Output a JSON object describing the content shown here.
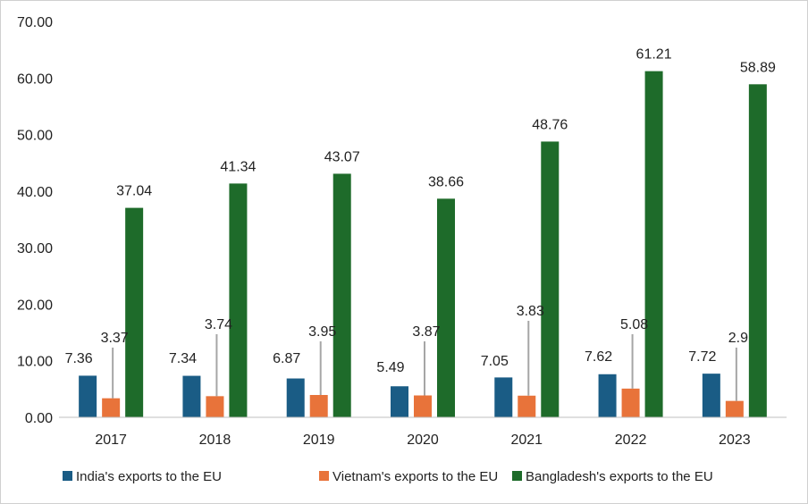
{
  "chart_data": {
    "type": "bar",
    "categories": [
      "2017",
      "2018",
      "2019",
      "2020",
      "2021",
      "2022",
      "2023"
    ],
    "series": [
      {
        "name": "India's exports to the EU",
        "color": "#1a5c85",
        "values": [
          7.36,
          7.34,
          6.87,
          5.49,
          7.05,
          7.62,
          7.72
        ],
        "labels": [
          "7.36",
          "7.34",
          "6.87",
          "5.49",
          "7.05",
          "7.62",
          "7.72"
        ]
      },
      {
        "name": "Vietnam's exports to the EU",
        "color": "#e8733a",
        "values": [
          3.37,
          3.74,
          3.95,
          3.87,
          3.83,
          5.08,
          2.9
        ],
        "labels": [
          "3.37",
          "3.74",
          "3.95",
          "3.87",
          "3.83",
          "5.08",
          "2.9"
        ]
      },
      {
        "name": "Bangladesh's exports to the EU",
        "color": "#1e6b2a",
        "values": [
          37.04,
          41.34,
          43.07,
          38.66,
          48.76,
          61.21,
          58.89
        ],
        "labels": [
          "37.04",
          "41.34",
          "43.07",
          "38.66",
          "48.76",
          "61.21",
          "58.89"
        ]
      }
    ],
    "yticks": [
      "0.00",
      "10.00",
      "20.00",
      "30.00",
      "40.00",
      "50.00",
      "60.00",
      "70.00"
    ],
    "ylim": [
      0,
      70
    ],
    "grid": false,
    "legend": "bottom"
  }
}
